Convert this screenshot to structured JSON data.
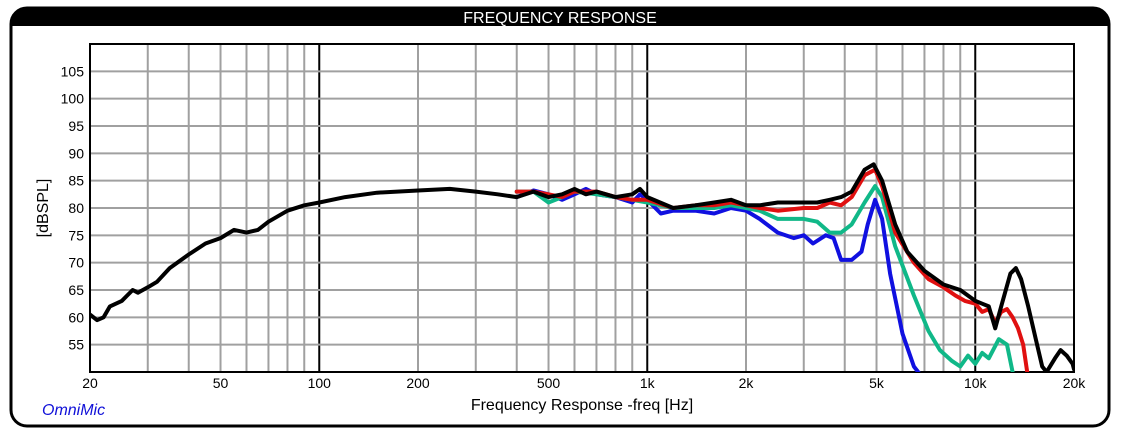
{
  "chart_data": {
    "type": "line",
    "title": "FREQUENCY RESPONSE",
    "xlabel": "Frequency Response -freq [Hz]",
    "ylabel": "[dBSPL]",
    "brand": "OmniMic",
    "x_scale": "log",
    "xlim": [
      20,
      20000
    ],
    "ylim": [
      50,
      110
    ],
    "grid": true,
    "x_ticks": [
      {
        "value": 20,
        "label": "20"
      },
      {
        "value": 50,
        "label": "50"
      },
      {
        "value": 100,
        "label": "100"
      },
      {
        "value": 200,
        "label": "200"
      },
      {
        "value": 500,
        "label": "500"
      },
      {
        "value": 1000,
        "label": "1k"
      },
      {
        "value": 2000,
        "label": "2k"
      },
      {
        "value": 5000,
        "label": "5k"
      },
      {
        "value": 10000,
        "label": "10k"
      },
      {
        "value": 20000,
        "label": "20k"
      }
    ],
    "y_ticks": [
      {
        "value": 55,
        "label": "55"
      },
      {
        "value": 60,
        "label": "60"
      },
      {
        "value": 65,
        "label": "65"
      },
      {
        "value": 70,
        "label": "70"
      },
      {
        "value": 75,
        "label": "75"
      },
      {
        "value": 80,
        "label": "80"
      },
      {
        "value": 85,
        "label": "85"
      },
      {
        "value": 90,
        "label": "90"
      },
      {
        "value": 95,
        "label": "95"
      },
      {
        "value": 100,
        "label": "100"
      },
      {
        "value": 105,
        "label": "105"
      }
    ],
    "series": [
      {
        "color": "#1010e0",
        "points": [
          [
            400,
            82
          ],
          [
            450,
            83.2
          ],
          [
            500,
            82.5
          ],
          [
            550,
            81.5
          ],
          [
            600,
            82.5
          ],
          [
            650,
            83.5
          ],
          [
            700,
            82.5
          ],
          [
            800,
            82
          ],
          [
            900,
            81
          ],
          [
            950,
            82.5
          ],
          [
            1000,
            81.5
          ],
          [
            1100,
            79
          ],
          [
            1200,
            79.5
          ],
          [
            1400,
            79.5
          ],
          [
            1600,
            79
          ],
          [
            1800,
            80
          ],
          [
            2000,
            79.5
          ],
          [
            2200,
            78
          ],
          [
            2500,
            75.5
          ],
          [
            2800,
            74.5
          ],
          [
            3000,
            75
          ],
          [
            3200,
            73.5
          ],
          [
            3500,
            75
          ],
          [
            3700,
            74.5
          ],
          [
            3900,
            70.5
          ],
          [
            4200,
            70.5
          ],
          [
            4500,
            72
          ],
          [
            4700,
            77
          ],
          [
            4950,
            81.5
          ],
          [
            5200,
            78
          ],
          [
            5500,
            68
          ],
          [
            6000,
            57
          ],
          [
            6500,
            51
          ],
          [
            6800,
            49.5
          ]
        ]
      },
      {
        "color": "#10b888",
        "points": [
          [
            400,
            83
          ],
          [
            450,
            83
          ],
          [
            500,
            81
          ],
          [
            550,
            82
          ],
          [
            600,
            83
          ],
          [
            700,
            82.5
          ],
          [
            800,
            82
          ],
          [
            900,
            81.5
          ],
          [
            1000,
            81
          ],
          [
            1200,
            80
          ],
          [
            1400,
            80
          ],
          [
            1600,
            80
          ],
          [
            1800,
            80.5
          ],
          [
            2000,
            80
          ],
          [
            2200,
            79.5
          ],
          [
            2500,
            78
          ],
          [
            3000,
            78
          ],
          [
            3300,
            77.5
          ],
          [
            3600,
            75.5
          ],
          [
            3900,
            75.5
          ],
          [
            4200,
            77
          ],
          [
            4600,
            81
          ],
          [
            4950,
            84
          ],
          [
            5200,
            82
          ],
          [
            5700,
            73
          ],
          [
            6500,
            64
          ],
          [
            7200,
            57.5
          ],
          [
            7800,
            54
          ],
          [
            8500,
            52
          ],
          [
            9000,
            51
          ],
          [
            9500,
            53
          ],
          [
            10000,
            51.5
          ],
          [
            10500,
            53.5
          ],
          [
            11000,
            52.5
          ],
          [
            11800,
            56
          ],
          [
            12500,
            55
          ],
          [
            13000,
            50
          ]
        ]
      },
      {
        "color": "#e01010",
        "points": [
          [
            400,
            83
          ],
          [
            450,
            83
          ],
          [
            500,
            82.5
          ],
          [
            550,
            82
          ],
          [
            600,
            83
          ],
          [
            700,
            83
          ],
          [
            800,
            82
          ],
          [
            900,
            81.5
          ],
          [
            1000,
            81.5
          ],
          [
            1200,
            80
          ],
          [
            1400,
            80.5
          ],
          [
            1600,
            80.5
          ],
          [
            1800,
            81
          ],
          [
            2000,
            80.5
          ],
          [
            2200,
            80
          ],
          [
            2500,
            79.5
          ],
          [
            3000,
            80
          ],
          [
            3300,
            80
          ],
          [
            3600,
            81
          ],
          [
            3900,
            80.5
          ],
          [
            4200,
            82
          ],
          [
            4600,
            86
          ],
          [
            4950,
            87
          ],
          [
            5200,
            84
          ],
          [
            5700,
            75.5
          ],
          [
            6500,
            70
          ],
          [
            7200,
            67
          ],
          [
            8000,
            65.5
          ],
          [
            8700,
            64
          ],
          [
            9300,
            63
          ],
          [
            10000,
            62.5
          ],
          [
            10500,
            61
          ],
          [
            11000,
            61.5
          ],
          [
            11500,
            59
          ],
          [
            12000,
            61
          ],
          [
            12500,
            61.5
          ],
          [
            13000,
            60
          ],
          [
            13500,
            58
          ],
          [
            14000,
            55
          ],
          [
            14400,
            50
          ]
        ]
      },
      {
        "color": "#000000",
        "points": [
          [
            20,
            60.5
          ],
          [
            21,
            59.5
          ],
          [
            22,
            60
          ],
          [
            23,
            62
          ],
          [
            25,
            63
          ],
          [
            27,
            65
          ],
          [
            28,
            64.5
          ],
          [
            30,
            65.5
          ],
          [
            32,
            66.5
          ],
          [
            35,
            69
          ],
          [
            40,
            71.5
          ],
          [
            45,
            73.5
          ],
          [
            50,
            74.5
          ],
          [
            55,
            76
          ],
          [
            60,
            75.5
          ],
          [
            65,
            76
          ],
          [
            70,
            77.5
          ],
          [
            80,
            79.5
          ],
          [
            90,
            80.5
          ],
          [
            100,
            81
          ],
          [
            120,
            82
          ],
          [
            150,
            82.8
          ],
          [
            200,
            83.2
          ],
          [
            250,
            83.5
          ],
          [
            300,
            83
          ],
          [
            350,
            82.5
          ],
          [
            400,
            82
          ],
          [
            450,
            83
          ],
          [
            500,
            82
          ],
          [
            550,
            82.5
          ],
          [
            600,
            83.5
          ],
          [
            650,
            82.5
          ],
          [
            700,
            83
          ],
          [
            800,
            82
          ],
          [
            900,
            82.5
          ],
          [
            950,
            83.5
          ],
          [
            1000,
            82
          ],
          [
            1200,
            80
          ],
          [
            1400,
            80.5
          ],
          [
            1600,
            81
          ],
          [
            1800,
            81.5
          ],
          [
            2000,
            80.5
          ],
          [
            2200,
            80.5
          ],
          [
            2500,
            81
          ],
          [
            3000,
            81
          ],
          [
            3300,
            81
          ],
          [
            3600,
            81.5
          ],
          [
            3900,
            82
          ],
          [
            4200,
            83
          ],
          [
            4600,
            87
          ],
          [
            4900,
            88
          ],
          [
            5200,
            85
          ],
          [
            5700,
            77
          ],
          [
            6200,
            72
          ],
          [
            7000,
            68.5
          ],
          [
            8000,
            66
          ],
          [
            9000,
            65
          ],
          [
            10000,
            63
          ],
          [
            10500,
            62.5
          ],
          [
            11000,
            62
          ],
          [
            11500,
            58
          ],
          [
            12000,
            62
          ],
          [
            12800,
            68
          ],
          [
            13300,
            69
          ],
          [
            13800,
            67
          ],
          [
            14500,
            62
          ],
          [
            15300,
            56
          ],
          [
            16000,
            51
          ],
          [
            16500,
            50
          ],
          [
            17500,
            52.5
          ],
          [
            18200,
            54
          ],
          [
            19000,
            53
          ],
          [
            19800,
            51.5
          ],
          [
            20000,
            50.5
          ]
        ]
      }
    ]
  }
}
